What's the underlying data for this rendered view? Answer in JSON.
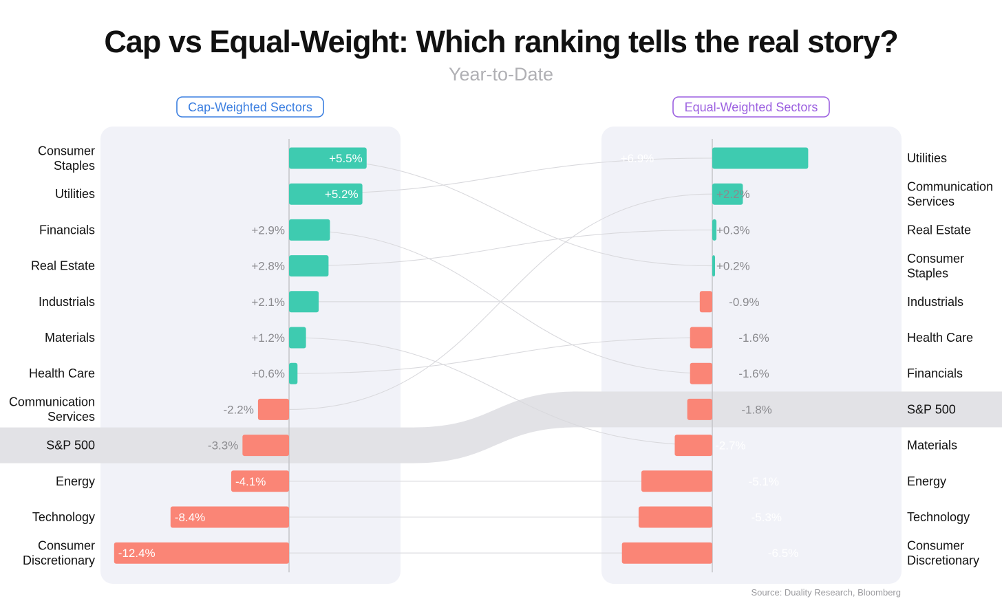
{
  "chart_data": {
    "type": "bar",
    "title": "Cap vs Equal-Weight: Which ranking tells the real story?",
    "subtitle": "Year-to-Date",
    "source": "Source: Duality Research, Bloomberg",
    "highlight": "S&P 500",
    "colors": {
      "positive": "#3ecbb0",
      "negative": "#fa8576",
      "panel": "#f1f2f8",
      "highlight": "#e2e2e6",
      "cap_badge": "#3a7ee0",
      "equal_badge": "#9b5fe0",
      "link": "#d9d9dd",
      "axis": "#c4c4c8"
    },
    "left": {
      "name": "Cap-Weighted Sectors",
      "items": [
        {
          "category": "Consumer Staples",
          "lines": [
            "Consumer",
            "Staples"
          ],
          "value": 5.5,
          "label": "+5.5%"
        },
        {
          "category": "Utilities",
          "lines": [
            "Utilities"
          ],
          "value": 5.2,
          "label": "+5.2%"
        },
        {
          "category": "Financials",
          "lines": [
            "Financials"
          ],
          "value": 2.9,
          "label": "+2.9%"
        },
        {
          "category": "Real Estate",
          "lines": [
            "Real Estate"
          ],
          "value": 2.8,
          "label": "+2.8%"
        },
        {
          "category": "Industrials",
          "lines": [
            "Industrials"
          ],
          "value": 2.1,
          "label": "+2.1%"
        },
        {
          "category": "Materials",
          "lines": [
            "Materials"
          ],
          "value": 1.2,
          "label": "+1.2%"
        },
        {
          "category": "Health Care",
          "lines": [
            "Health Care"
          ],
          "value": 0.6,
          "label": "+0.6%"
        },
        {
          "category": "Communication Services",
          "lines": [
            "Communication",
            "Services"
          ],
          "value": -2.2,
          "label": "-2.2%"
        },
        {
          "category": "S&P 500",
          "lines": [
            "S&P 500"
          ],
          "value": -3.3,
          "label": "-3.3%"
        },
        {
          "category": "Energy",
          "lines": [
            "Energy"
          ],
          "value": -4.1,
          "label": "-4.1%"
        },
        {
          "category": "Technology",
          "lines": [
            "Technology"
          ],
          "value": -8.4,
          "label": "-8.4%"
        },
        {
          "category": "Consumer Discretionary",
          "lines": [
            "Consumer",
            "Discretionary"
          ],
          "value": -12.4,
          "label": "-12.4%"
        }
      ]
    },
    "right": {
      "name": "Equal-Weighted Sectors",
      "items": [
        {
          "category": "Utilities",
          "lines": [
            "Utilities"
          ],
          "value": 6.9,
          "label": "+6.9%"
        },
        {
          "category": "Communication Services",
          "lines": [
            "Communication",
            "Services"
          ],
          "value": 2.2,
          "label": "+2.2%"
        },
        {
          "category": "Real Estate",
          "lines": [
            "Real Estate"
          ],
          "value": 0.3,
          "label": "+0.3%"
        },
        {
          "category": "Consumer Staples",
          "lines": [
            "Consumer",
            "Staples"
          ],
          "value": 0.2,
          "label": "+0.2%"
        },
        {
          "category": "Industrials",
          "lines": [
            "Industrials"
          ],
          "value": -0.9,
          "label": "-0.9%"
        },
        {
          "category": "Health Care",
          "lines": [
            "Health Care"
          ],
          "value": -1.6,
          "label": "-1.6%"
        },
        {
          "category": "Financials",
          "lines": [
            "Financials"
          ],
          "value": -1.6,
          "label": "-1.6%"
        },
        {
          "category": "S&P 500",
          "lines": [
            "S&P 500"
          ],
          "value": -1.8,
          "label": "-1.8%"
        },
        {
          "category": "Materials",
          "lines": [
            "Materials"
          ],
          "value": -2.7,
          "label": "-2.7%"
        },
        {
          "category": "Energy",
          "lines": [
            "Energy"
          ],
          "value": -5.1,
          "label": "-5.1%"
        },
        {
          "category": "Technology",
          "lines": [
            "Technology"
          ],
          "value": -5.3,
          "label": "-5.3%"
        },
        {
          "category": "Consumer Discretionary",
          "lines": [
            "Consumer",
            "Discretionary"
          ],
          "value": -6.5,
          "label": "-6.5%"
        }
      ]
    }
  }
}
